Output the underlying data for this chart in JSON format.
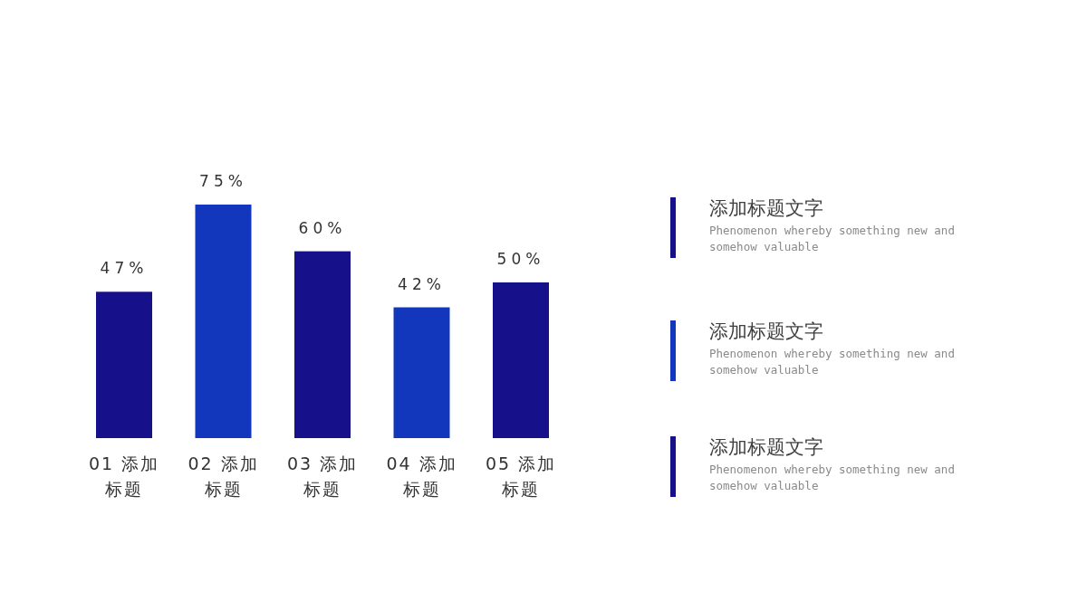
{
  "chart_data": [
    {
      "type": "bar",
      "categories": [
        "01 添加标题",
        "02 添加标题",
        "03 添加标题",
        "04 添加标题",
        "05 添加标题"
      ],
      "values": [
        47,
        75,
        60,
        42,
        50
      ],
      "colors": [
        "#16118a",
        "#1237bd",
        "#16118a",
        "#1237bd",
        "#16118a"
      ],
      "value_labels": [
        "47%",
        "75%",
        "60%",
        "42%",
        "50%"
      ]
    },
    {
      "type": "other",
      "annotations": [
        "添加标题文字",
        "Phenomenon whereby something new and somehow valuable",
        "添加标题文字",
        "Phenomenon whereby something new and somehow valuable",
        "添加标题文字",
        "Phenomenon whereby something new and somehow valuable"
      ]
    }
  ]
}
